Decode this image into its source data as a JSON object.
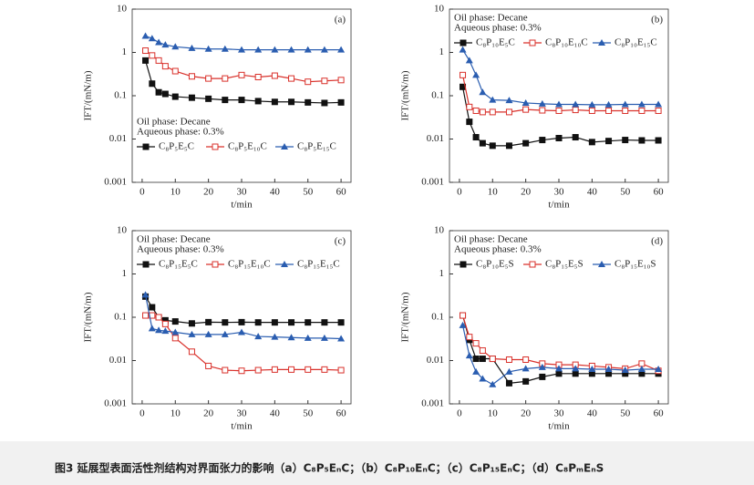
{
  "chart_data": [
    {
      "type": "line",
      "panel_label": "(a)",
      "annotations": [
        "Oil phase: Decane",
        "Aqueous phase: 0.3%"
      ],
      "x_label": "t/min",
      "y_label": "IFT/(mN/m)",
      "log_y": true,
      "legend_position": "lower left",
      "xlim": [
        -3,
        63
      ],
      "xticks": [
        0,
        10,
        20,
        30,
        40,
        50,
        60
      ],
      "ylim": [
        0.001,
        10
      ],
      "yticks": [
        0.001,
        0.01,
        0.1,
        1,
        10
      ],
      "x": [
        1,
        3,
        5,
        7,
        10,
        15,
        20,
        25,
        30,
        35,
        40,
        45,
        50,
        55,
        60
      ],
      "series": [
        {
          "name": "C₈P₅E₅C",
          "color": "#111111",
          "marker": "square",
          "values": [
            0.65,
            0.19,
            0.12,
            0.11,
            0.095,
            0.09,
            0.085,
            0.08,
            0.08,
            0.075,
            0.072,
            0.072,
            0.07,
            0.068,
            0.07
          ]
        },
        {
          "name": "C₈P₅E₁₀C",
          "color": "#d9312b",
          "marker": "open-square",
          "values": [
            1.1,
            0.85,
            0.65,
            0.48,
            0.37,
            0.28,
            0.25,
            0.25,
            0.3,
            0.27,
            0.29,
            0.25,
            0.21,
            0.22,
            0.23
          ]
        },
        {
          "name": "C₈P₅E₁₅C",
          "color": "#2a5db0",
          "marker": "triangle",
          "values": [
            2.4,
            2.1,
            1.7,
            1.5,
            1.35,
            1.25,
            1.2,
            1.2,
            1.15,
            1.15,
            1.15,
            1.15,
            1.15,
            1.15,
            1.15
          ]
        }
      ]
    },
    {
      "type": "line",
      "panel_label": "(b)",
      "annotations": [
        "Oil phase: Decane",
        "Aqueous phase: 0.3%"
      ],
      "x_label": "t/min",
      "y_label": "IFT/(mN/m)",
      "log_y": true,
      "legend_position": "upper left",
      "xlim": [
        -3,
        63
      ],
      "xticks": [
        0,
        10,
        20,
        30,
        40,
        50,
        60
      ],
      "ylim": [
        0.001,
        10
      ],
      "yticks": [
        0.001,
        0.01,
        0.1,
        1,
        10
      ],
      "x": [
        1,
        3,
        5,
        7,
        10,
        15,
        20,
        25,
        30,
        35,
        40,
        45,
        50,
        55,
        60
      ],
      "series": [
        {
          "name": "C₈P₁₀E₅C",
          "color": "#111111",
          "marker": "square",
          "values": [
            0.16,
            0.025,
            0.011,
            0.008,
            0.007,
            0.007,
            0.008,
            0.0095,
            0.0105,
            0.011,
            0.0085,
            0.009,
            0.0095,
            0.0093,
            0.0093
          ]
        },
        {
          "name": "C₈P₁₀E₁₀C",
          "color": "#d9312b",
          "marker": "open-square",
          "values": [
            0.3,
            0.055,
            0.045,
            0.042,
            0.042,
            0.042,
            0.048,
            0.046,
            0.045,
            0.047,
            0.045,
            0.045,
            0.045,
            0.045,
            0.045
          ]
        },
        {
          "name": "C₈P₁₀E₁₅C",
          "color": "#2a5db0",
          "marker": "triangle",
          "values": [
            1.15,
            0.65,
            0.3,
            0.12,
            0.08,
            0.078,
            0.068,
            0.065,
            0.063,
            0.063,
            0.062,
            0.062,
            0.063,
            0.063,
            0.063
          ]
        }
      ]
    },
    {
      "type": "line",
      "panel_label": "(c)",
      "annotations": [
        "Oil phase: Decane",
        "Aqueous phase: 0.3%"
      ],
      "x_label": "t/min",
      "y_label": "IFT/(mN/m)",
      "log_y": true,
      "legend_position": "upper left",
      "xlim": [
        -3,
        63
      ],
      "xticks": [
        0,
        10,
        20,
        30,
        40,
        50,
        60
      ],
      "ylim": [
        0.001,
        10
      ],
      "yticks": [
        0.001,
        0.01,
        0.1,
        1,
        10
      ],
      "x": [
        1,
        3,
        5,
        7,
        10,
        15,
        20,
        25,
        30,
        35,
        40,
        45,
        50,
        55,
        60
      ],
      "series": [
        {
          "name": "C₈P₁₅E₅C",
          "color": "#111111",
          "marker": "square",
          "values": [
            0.3,
            0.17,
            0.1,
            0.085,
            0.08,
            0.072,
            0.077,
            0.076,
            0.077,
            0.076,
            0.076,
            0.076,
            0.076,
            0.076,
            0.076
          ]
        },
        {
          "name": "C₈P₁₅E₁₀C",
          "color": "#d9312b",
          "marker": "open-square",
          "values": [
            0.11,
            0.11,
            0.1,
            0.07,
            0.033,
            0.016,
            0.0075,
            0.006,
            0.0058,
            0.006,
            0.0062,
            0.0062,
            0.0062,
            0.0062,
            0.006
          ]
        },
        {
          "name": "C₈P₁₅E₁₅C",
          "color": "#2a5db0",
          "marker": "triangle",
          "values": [
            0.33,
            0.055,
            0.05,
            0.048,
            0.045,
            0.04,
            0.04,
            0.04,
            0.045,
            0.036,
            0.035,
            0.034,
            0.033,
            0.033,
            0.032
          ]
        }
      ]
    },
    {
      "type": "line",
      "panel_label": "(d)",
      "annotations": [
        "Oil phase: Decane",
        "Aqueous phase: 0.3%"
      ],
      "x_label": "t/min",
      "y_label": "IFT/(mN/m)",
      "log_y": true,
      "legend_position": "upper left",
      "xlim": [
        -3,
        63
      ],
      "xticks": [
        0,
        10,
        20,
        30,
        40,
        50,
        60
      ],
      "ylim": [
        0.001,
        10
      ],
      "yticks": [
        0.001,
        0.01,
        0.1,
        1,
        10
      ],
      "x": [
        1,
        3,
        5,
        7,
        10,
        15,
        20,
        25,
        30,
        35,
        40,
        45,
        50,
        55,
        60
      ],
      "series": [
        {
          "name": "C₈P₁₀E₅S",
          "color": "#111111",
          "marker": "square",
          "values": [
            0.11,
            0.03,
            0.011,
            0.011,
            0.011,
            0.003,
            0.0033,
            0.0042,
            0.005,
            0.005,
            0.005,
            0.005,
            0.005,
            0.005,
            0.005
          ]
        },
        {
          "name": "C₈P₁₅E₅S",
          "color": "#d9312b",
          "marker": "open-square",
          "values": [
            0.11,
            0.035,
            0.025,
            0.017,
            0.011,
            0.0105,
            0.0105,
            0.0085,
            0.008,
            0.008,
            0.0075,
            0.007,
            0.0065,
            0.0085,
            0.0058
          ]
        },
        {
          "name": "C₈P₁₅E₁₀S",
          "color": "#2a5db0",
          "marker": "triangle",
          "values": [
            0.065,
            0.013,
            0.0055,
            0.0038,
            0.0028,
            0.0055,
            0.0065,
            0.007,
            0.0065,
            0.0065,
            0.0063,
            0.0063,
            0.006,
            0.0063,
            0.0063
          ]
        }
      ]
    }
  ],
  "caption": "图3  延展型表面活性剂结构对界面张力的影响（a）C₈P₅EₙC；（b）C₈P₁₀EₙC；（c）C₈P₁₅EₙC；（d）C₈PₘEₙS"
}
